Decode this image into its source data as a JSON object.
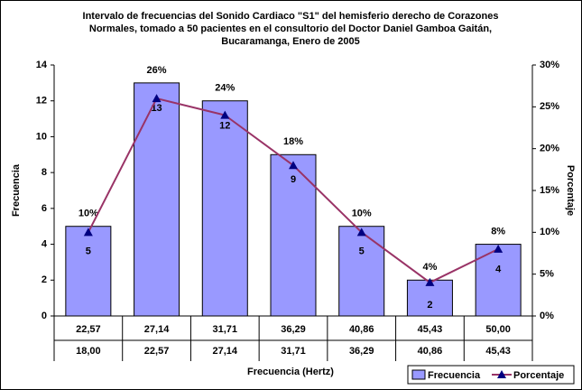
{
  "chart_data": {
    "type": "bar_line",
    "title": [
      "Intervalo de frecuencias del Sonido Cardiaco \"S1\" del hemisferio derecho de Corazones",
      "Normales, tomado a 50 pacientes en el consultorio del Doctor Daniel Gamboa Gaitán,",
      "Bucaramanga, Enero de 2005"
    ],
    "x_label": "Frecuencia (Hertz)",
    "y_label": "Frecuencia",
    "y2_label": "Porcentaje",
    "categories": [
      [
        "22,57",
        "18,00"
      ],
      [
        "27,14",
        "22,57"
      ],
      [
        "31,71",
        "27,14"
      ],
      [
        "36,29",
        "31,71"
      ],
      [
        "40,86",
        "36,29"
      ],
      [
        "45,43",
        "40,86"
      ],
      [
        "50,00",
        "45,43"
      ]
    ],
    "series": [
      {
        "name": "Frecuencia",
        "color": "#9999ff",
        "values": [
          5,
          13,
          12,
          9,
          5,
          2,
          4
        ]
      },
      {
        "name": "Porcentaje",
        "color": "#993366",
        "marker_color": "#000080",
        "axis": "y2",
        "values": [
          10,
          26,
          24,
          18,
          10,
          4,
          8
        ],
        "value_labels": [
          "10%",
          "26%",
          "24%",
          "18%",
          "10%",
          "4%",
          "8%"
        ]
      }
    ],
    "ylim": [
      0,
      14
    ],
    "yticks": [
      0,
      2,
      4,
      6,
      8,
      10,
      12,
      14
    ],
    "y2lim": [
      0,
      30
    ],
    "y2ticks": [
      {
        "value": 0,
        "label": "0%"
      },
      {
        "value": 5,
        "label": "5%"
      },
      {
        "value": 10,
        "label": "10%"
      },
      {
        "value": 15,
        "label": "15%"
      },
      {
        "value": 20,
        "label": "20%"
      },
      {
        "value": 25,
        "label": "25%"
      },
      {
        "value": 30,
        "label": "30%"
      }
    ],
    "legend": "bottom-right"
  }
}
